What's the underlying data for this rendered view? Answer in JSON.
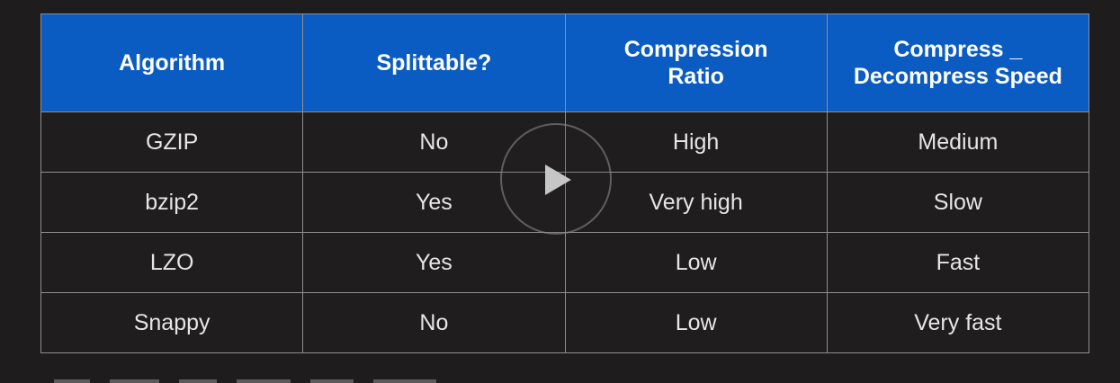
{
  "table": {
    "headers": [
      "Algorithm",
      "Splittable?",
      "Compression\nRatio",
      "Compress _\nDecompress Speed"
    ],
    "rows": [
      [
        "GZIP",
        "No",
        "High",
        "Medium"
      ],
      [
        "bzip2",
        "Yes",
        "Very high",
        "Slow"
      ],
      [
        "LZO",
        "Yes",
        "Low",
        "Fast"
      ],
      [
        "Snappy",
        "No",
        "Low",
        "Very fast"
      ]
    ]
  },
  "player": {
    "play_icon": "play-icon"
  },
  "colors": {
    "header_bg": "#0a5cc2",
    "page_bg": "#1e1c1d",
    "border": "#8f8f8f"
  }
}
